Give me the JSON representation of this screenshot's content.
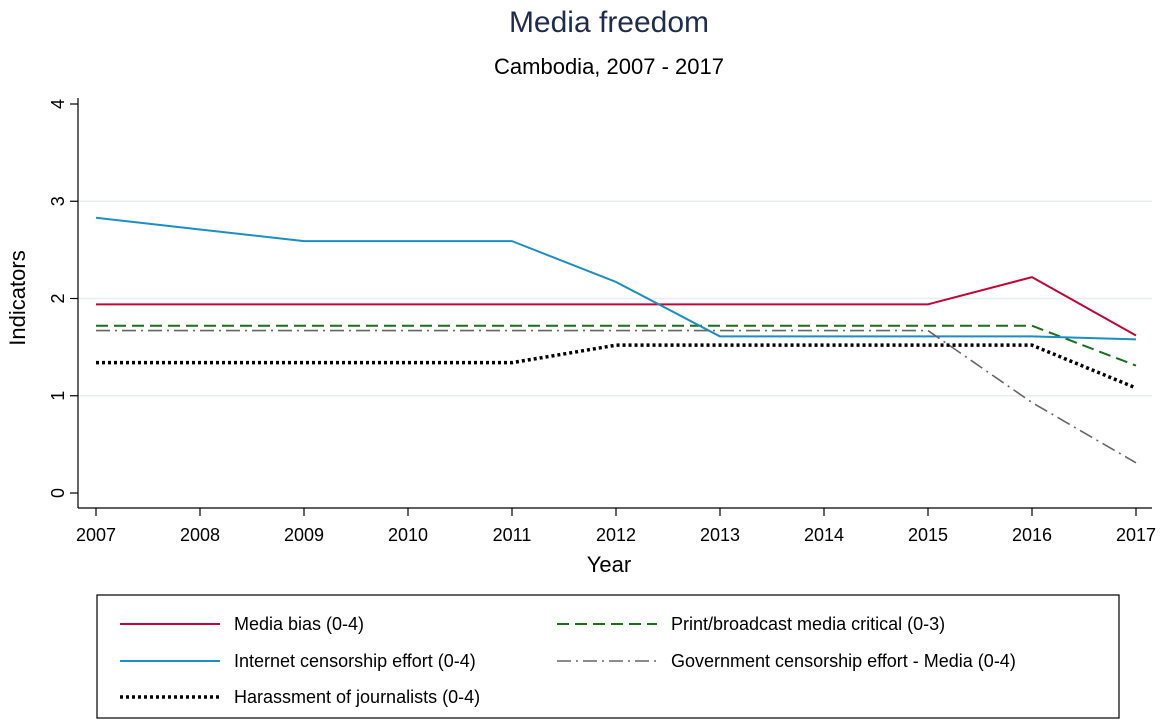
{
  "chart_data": {
    "type": "line",
    "title": "Media freedom",
    "subtitle": "Cambodia, 2007 - 2017",
    "xlabel": "Year",
    "ylabel": "Indicators",
    "xlim": [
      2007,
      2017
    ],
    "ylim": [
      0,
      4
    ],
    "x_ticks": [
      "2007",
      "2008",
      "2009",
      "2010",
      "2011",
      "2012",
      "2013",
      "2014",
      "2015",
      "2016",
      "2017"
    ],
    "y_ticks": [
      "0",
      "1",
      "2",
      "3",
      "4"
    ],
    "grid": "horizontal",
    "legend_position": "bottom",
    "x": [
      2007,
      2008,
      2009,
      2010,
      2011,
      2012,
      2013,
      2014,
      2015,
      2016,
      2017
    ],
    "series": [
      {
        "name": "Media bias (0-4)",
        "color": "#c10534",
        "dash": "solid",
        "values": [
          1.94,
          1.94,
          1.94,
          1.94,
          1.94,
          1.94,
          1.94,
          1.94,
          1.94,
          2.22,
          1.62
        ]
      },
      {
        "name": "Print/broadcast media critical (0-3)",
        "color": "#1a6f1a",
        "dash": "dashed",
        "values": [
          1.72,
          1.72,
          1.72,
          1.72,
          1.72,
          1.72,
          1.72,
          1.72,
          1.72,
          1.72,
          1.31
        ]
      },
      {
        "name": "Internet censorship effort (0-4)",
        "color": "#1a8fc4",
        "dash": "solid",
        "values": [
          2.83,
          2.71,
          2.59,
          2.59,
          2.59,
          2.17,
          1.61,
          1.61,
          1.61,
          1.61,
          1.58
        ]
      },
      {
        "name": "Government censorship effort - Media (0-4)",
        "color": "#666666",
        "dash": "dashdot",
        "values": [
          1.67,
          1.67,
          1.67,
          1.67,
          1.67,
          1.67,
          1.67,
          1.67,
          1.67,
          0.93,
          0.31
        ]
      },
      {
        "name": "Harassment of journalists (0-4)",
        "color": "#000000",
        "dash": "dotted",
        "values": [
          1.34,
          1.34,
          1.34,
          1.34,
          1.34,
          1.52,
          1.52,
          1.52,
          1.52,
          1.52,
          1.08
        ]
      }
    ]
  }
}
